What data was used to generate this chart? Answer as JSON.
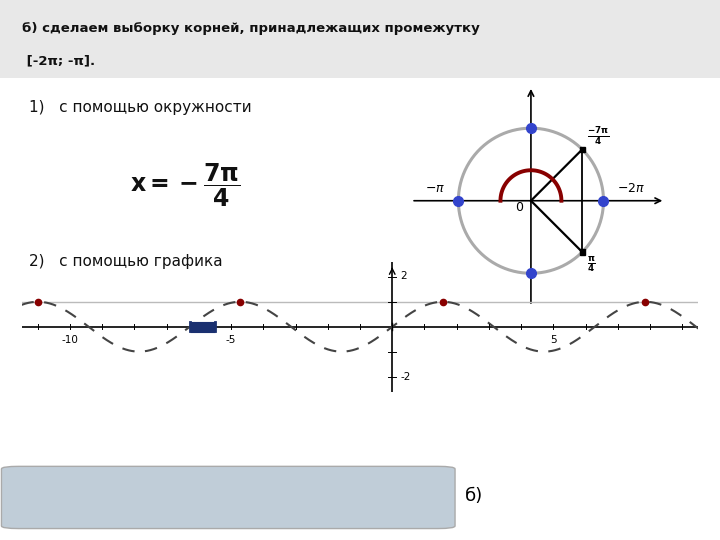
{
  "bg_color": "#e8e8e8",
  "white": "#ffffff",
  "header_text_line1": "б) сделаем выборку корней, принадлежащих промежутку",
  "header_text_line2": " [-2π; -π].",
  "circle_color": "#aaaaaa",
  "circle_dot_color": "#3344cc",
  "arc_color": "#880000",
  "highlight_color": "#1a3070",
  "red_dot_color": "#880000",
  "box_color": "#c0cdd8",
  "sine_color": "#333333"
}
